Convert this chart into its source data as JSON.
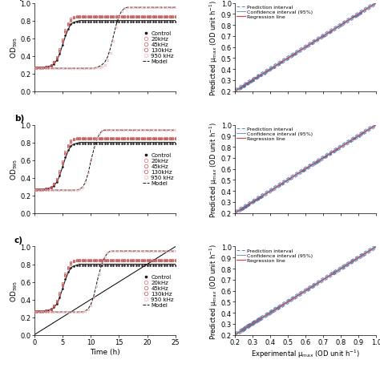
{
  "time": [
    0,
    0.5,
    1,
    1.5,
    2,
    2.5,
    3,
    3.5,
    4,
    4.5,
    5,
    5.5,
    6,
    6.5,
    7,
    7.5,
    8,
    8.5,
    9,
    9.5,
    10,
    10.5,
    11,
    11.5,
    12,
    12.5,
    13,
    13.5,
    14,
    14.5,
    15,
    15.5,
    16,
    16.5,
    17,
    17.5,
    18,
    18.5,
    19,
    19.5,
    20,
    20.5,
    21,
    21.5,
    22,
    22.5,
    23,
    23.5,
    24,
    24.5,
    25
  ],
  "control_od": [
    0.27,
    0.27,
    0.27,
    0.27,
    0.28,
    0.28,
    0.29,
    0.31,
    0.35,
    0.42,
    0.52,
    0.63,
    0.71,
    0.76,
    0.78,
    0.79,
    0.79,
    0.79,
    0.79,
    0.79,
    0.79,
    0.79,
    0.79,
    0.79,
    0.79,
    0.79,
    0.79,
    0.79,
    0.79,
    0.79,
    0.79,
    0.79,
    0.79,
    0.79,
    0.79,
    0.79,
    0.79,
    0.79,
    0.79,
    0.79,
    0.79,
    0.79,
    0.79,
    0.79,
    0.79,
    0.79,
    0.79,
    0.79,
    0.79,
    0.79,
    0.79
  ],
  "freq20_od": [
    0.27,
    0.27,
    0.27,
    0.27,
    0.27,
    0.28,
    0.3,
    0.33,
    0.38,
    0.46,
    0.57,
    0.68,
    0.76,
    0.81,
    0.83,
    0.84,
    0.84,
    0.84,
    0.84,
    0.84,
    0.84,
    0.84,
    0.84,
    0.84,
    0.84,
    0.84,
    0.84,
    0.84,
    0.84,
    0.84,
    0.84,
    0.84,
    0.84,
    0.84,
    0.84,
    0.84,
    0.84,
    0.84,
    0.84,
    0.84,
    0.84,
    0.84,
    0.84,
    0.84,
    0.84,
    0.84,
    0.84,
    0.84,
    0.84,
    0.84,
    0.84
  ],
  "freq45_od": [
    0.26,
    0.26,
    0.26,
    0.27,
    0.27,
    0.28,
    0.3,
    0.33,
    0.39,
    0.48,
    0.59,
    0.7,
    0.77,
    0.82,
    0.84,
    0.85,
    0.85,
    0.85,
    0.85,
    0.85,
    0.85,
    0.85,
    0.85,
    0.85,
    0.85,
    0.85,
    0.85,
    0.85,
    0.85,
    0.85,
    0.85,
    0.85,
    0.85,
    0.85,
    0.85,
    0.85,
    0.85,
    0.85,
    0.85,
    0.85,
    0.85,
    0.85,
    0.85,
    0.85,
    0.85,
    0.85,
    0.85,
    0.85,
    0.85,
    0.85,
    0.85
  ],
  "freq130_od": [
    0.26,
    0.26,
    0.26,
    0.26,
    0.27,
    0.28,
    0.29,
    0.32,
    0.37,
    0.45,
    0.56,
    0.67,
    0.75,
    0.8,
    0.83,
    0.84,
    0.84,
    0.84,
    0.84,
    0.84,
    0.84,
    0.84,
    0.84,
    0.84,
    0.84,
    0.84,
    0.84,
    0.84,
    0.84,
    0.84,
    0.84,
    0.84,
    0.84,
    0.84,
    0.84,
    0.84,
    0.84,
    0.84,
    0.84,
    0.84,
    0.84,
    0.84,
    0.84,
    0.84,
    0.84,
    0.84,
    0.84,
    0.84,
    0.84,
    0.84,
    0.84
  ],
  "freq950_od_a": [
    0.26,
    0.26,
    0.26,
    0.26,
    0.26,
    0.26,
    0.26,
    0.26,
    0.26,
    0.26,
    0.26,
    0.26,
    0.26,
    0.26,
    0.26,
    0.26,
    0.26,
    0.26,
    0.26,
    0.26,
    0.26,
    0.26,
    0.27,
    0.27,
    0.28,
    0.3,
    0.35,
    0.43,
    0.57,
    0.72,
    0.84,
    0.91,
    0.94,
    0.95,
    0.95,
    0.95,
    0.95,
    0.95,
    0.95,
    0.95,
    0.95,
    0.95,
    0.95,
    0.95,
    0.95,
    0.95,
    0.95,
    0.95,
    0.95,
    0.95,
    0.95
  ],
  "freq950_od_b": [
    0.26,
    0.26,
    0.26,
    0.26,
    0.26,
    0.26,
    0.26,
    0.26,
    0.26,
    0.26,
    0.26,
    0.26,
    0.26,
    0.26,
    0.26,
    0.26,
    0.27,
    0.29,
    0.35,
    0.46,
    0.6,
    0.74,
    0.84,
    0.9,
    0.93,
    0.94,
    0.94,
    0.94,
    0.94,
    0.94,
    0.94,
    0.94,
    0.94,
    0.94,
    0.94,
    0.94,
    0.94,
    0.94,
    0.94,
    0.94,
    0.94,
    0.94,
    0.94,
    0.94,
    0.94,
    0.94,
    0.94,
    0.94,
    0.94,
    0.94,
    0.94
  ],
  "freq950_od_c": [
    0.26,
    0.26,
    0.26,
    0.26,
    0.26,
    0.26,
    0.26,
    0.26,
    0.26,
    0.26,
    0.26,
    0.26,
    0.26,
    0.26,
    0.26,
    0.26,
    0.26,
    0.26,
    0.27,
    0.29,
    0.33,
    0.42,
    0.55,
    0.69,
    0.81,
    0.89,
    0.93,
    0.95,
    0.95,
    0.95,
    0.95,
    0.95,
    0.95,
    0.95,
    0.95,
    0.95,
    0.95,
    0.95,
    0.95,
    0.95,
    0.95,
    0.95,
    0.95,
    0.95,
    0.95,
    0.95,
    0.95,
    0.95,
    0.95,
    0.95,
    0.95
  ],
  "model_control": [
    0.27,
    0.27,
    0.27,
    0.27,
    0.27,
    0.28,
    0.29,
    0.31,
    0.35,
    0.42,
    0.52,
    0.62,
    0.7,
    0.76,
    0.78,
    0.79,
    0.8,
    0.8,
    0.8,
    0.8,
    0.8,
    0.8,
    0.8,
    0.8,
    0.8,
    0.8,
    0.8,
    0.8,
    0.8,
    0.8,
    0.8,
    0.8,
    0.8,
    0.8,
    0.8,
    0.8,
    0.8,
    0.8,
    0.8,
    0.8,
    0.8,
    0.8,
    0.8,
    0.8,
    0.8,
    0.8,
    0.8,
    0.8,
    0.8,
    0.8,
    0.8
  ],
  "model_950_a": [
    0.26,
    0.26,
    0.26,
    0.26,
    0.26,
    0.26,
    0.26,
    0.26,
    0.26,
    0.26,
    0.26,
    0.26,
    0.26,
    0.26,
    0.26,
    0.26,
    0.26,
    0.26,
    0.26,
    0.26,
    0.26,
    0.26,
    0.27,
    0.28,
    0.3,
    0.33,
    0.39,
    0.49,
    0.62,
    0.75,
    0.85,
    0.91,
    0.94,
    0.95,
    0.95,
    0.95,
    0.95,
    0.95,
    0.95,
    0.95,
    0.95,
    0.95,
    0.95,
    0.95,
    0.95,
    0.95,
    0.95,
    0.95,
    0.95,
    0.95,
    0.95
  ],
  "model_950_b": [
    0.26,
    0.26,
    0.26,
    0.26,
    0.26,
    0.26,
    0.26,
    0.26,
    0.26,
    0.26,
    0.26,
    0.26,
    0.26,
    0.26,
    0.26,
    0.26,
    0.27,
    0.29,
    0.34,
    0.44,
    0.58,
    0.71,
    0.82,
    0.89,
    0.93,
    0.94,
    0.94,
    0.94,
    0.94,
    0.94,
    0.94,
    0.94,
    0.94,
    0.94,
    0.94,
    0.94,
    0.94,
    0.94,
    0.94,
    0.94,
    0.94,
    0.94,
    0.94,
    0.94,
    0.94,
    0.94,
    0.94,
    0.94,
    0.94,
    0.94,
    0.94
  ],
  "model_950_c": [
    0.26,
    0.26,
    0.26,
    0.26,
    0.26,
    0.26,
    0.26,
    0.26,
    0.26,
    0.26,
    0.26,
    0.26,
    0.26,
    0.26,
    0.26,
    0.26,
    0.26,
    0.26,
    0.27,
    0.29,
    0.34,
    0.43,
    0.57,
    0.7,
    0.81,
    0.88,
    0.93,
    0.95,
    0.95,
    0.95,
    0.95,
    0.95,
    0.95,
    0.95,
    0.95,
    0.95,
    0.95,
    0.95,
    0.95,
    0.95,
    0.95,
    0.95,
    0.95,
    0.95,
    0.95,
    0.95,
    0.95,
    0.95,
    0.95,
    0.95,
    0.95
  ],
  "color_control": "#1a1a1a",
  "color_20khz": "#d4706e",
  "color_45khz": "#c8524f",
  "color_130khz": "#c0504d",
  "color_950khz": "#e8b0b0",
  "regression_color": "#c0504d",
  "ci_color": "#5b84c4",
  "pi_color": "#5b84c4",
  "scatter_color": "#4a6fa5",
  "ylabel_left": "OD$_{595}$",
  "ylabel_right": "Predicted μ$_{max}$ (OD unit h$^{-1}$)",
  "xlabel_left": "Time (h)",
  "xlabel_right": "Experimental μ$_{max}$ (OD unit h$^{-1}$)",
  "xlim_left": [
    0,
    25
  ],
  "ylim_left": [
    0.0,
    1.0
  ],
  "xlim_right": [
    0.2,
    1.0
  ],
  "ylim_right": [
    0.2,
    1.0
  ],
  "xticks_left": [
    0,
    5,
    10,
    15,
    20,
    25
  ],
  "yticks_left": [
    0.0,
    0.2,
    0.4,
    0.6,
    0.8,
    1.0
  ],
  "xticks_right": [
    0.2,
    0.3,
    0.4,
    0.5,
    0.6,
    0.7,
    0.8,
    0.9,
    1.0
  ],
  "yticks_right": [
    0.2,
    0.3,
    0.4,
    0.5,
    0.6,
    0.7,
    0.8,
    0.9,
    1.0
  ],
  "fontsize": 6,
  "marker_size": 1.8,
  "line_width": 0.8
}
